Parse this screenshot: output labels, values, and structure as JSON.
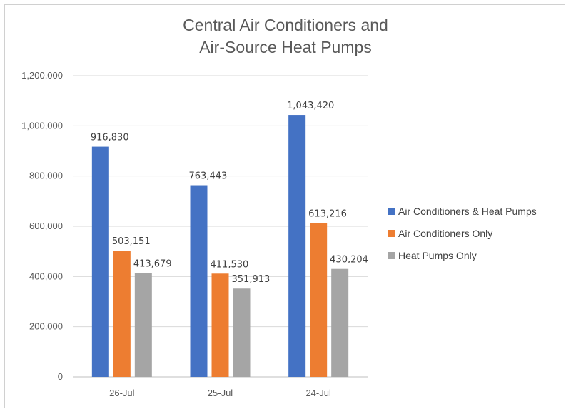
{
  "chart_data": {
    "type": "bar",
    "title_lines": [
      "Central Air Conditioners and",
      "Air-Source Heat Pumps"
    ],
    "categories": [
      "26-Jul",
      "25-Jul",
      "24-Jul"
    ],
    "series": [
      {
        "name": "Air Conditioners & Heat Pumps",
        "color": "#4472C4",
        "values": [
          916830,
          763443,
          1043420
        ],
        "labels": [
          "916,830",
          "763,443",
          "1,043,420"
        ]
      },
      {
        "name": "Air Conditioners Only",
        "color": "#ED7D31",
        "values": [
          503151,
          411530,
          613216
        ],
        "labels": [
          "503,151",
          "411,530",
          "613,216"
        ]
      },
      {
        "name": "Heat Pumps Only",
        "color": "#A5A5A5",
        "values": [
          413679,
          351913,
          430204
        ],
        "labels": [
          "413,679",
          "351,913",
          "430,204"
        ]
      }
    ],
    "ylim": [
      0,
      1200000
    ],
    "yticks": [
      0,
      200000,
      400000,
      600000,
      800000,
      1000000,
      1200000
    ],
    "ytick_labels": [
      "0",
      "200,000",
      "400,000",
      "600,000",
      "800,000",
      "1,000,000",
      "1,200,000"
    ],
    "grid": true,
    "legend_position": "right"
  }
}
